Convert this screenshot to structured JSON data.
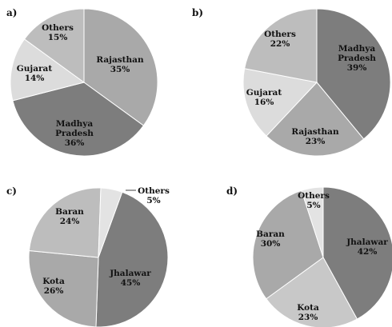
{
  "chart_data": [
    {
      "type": "pie",
      "panel": "a)",
      "slices": [
        {
          "label": [
            "Rajasthan"
          ],
          "value": 35,
          "value_text": "35%",
          "color": "#a9a9a9"
        },
        {
          "label": [
            "Madhya",
            "Pradesh"
          ],
          "value": 36,
          "value_text": "36%",
          "color": "#7d7d7d"
        },
        {
          "label": [
            "Gujarat"
          ],
          "value": 14,
          "value_text": "14%",
          "color": "#dcdcdc"
        },
        {
          "label": [
            "Others"
          ],
          "value": 15,
          "value_text": "15%",
          "color": "#bdbdbd"
        }
      ]
    },
    {
      "type": "pie",
      "panel": "b)",
      "slices": [
        {
          "label": [
            "Madhya",
            "Pradesh"
          ],
          "value": 39,
          "value_text": "39%",
          "color": "#7d7d7d"
        },
        {
          "label": [
            "Rajasthan"
          ],
          "value": 23,
          "value_text": "23%",
          "color": "#a9a9a9"
        },
        {
          "label": [
            "Gujarat"
          ],
          "value": 16,
          "value_text": "16%",
          "color": "#dcdcdc"
        },
        {
          "label": [
            "Others"
          ],
          "value": 22,
          "value_text": "22%",
          "color": "#bdbdbd"
        }
      ]
    },
    {
      "type": "pie",
      "panel": "c)",
      "slices": [
        {
          "label": [
            "Jhalawar"
          ],
          "value": 45,
          "value_text": "45%",
          "color": "#7d7d7d"
        },
        {
          "label": [
            "Kota"
          ],
          "value": 26,
          "value_text": "26%",
          "color": "#a9a9a9"
        },
        {
          "label": [
            "Baran"
          ],
          "value": 24,
          "value_text": "24%",
          "color": "#bdbdbd"
        },
        {
          "label": [
            "Others"
          ],
          "value": 5,
          "value_text": "5%",
          "color": "#e3e3e3"
        }
      ]
    },
    {
      "type": "pie",
      "panel": "d)",
      "slices": [
        {
          "label": [
            "Jhalawar"
          ],
          "value": 42,
          "value_text": "42%",
          "color": "#7d7d7d"
        },
        {
          "label": [
            "Kota"
          ],
          "value": 23,
          "value_text": "23%",
          "color": "#c8c8c8"
        },
        {
          "label": [
            "Baran"
          ],
          "value": 30,
          "value_text": "30%",
          "color": "#a9a9a9"
        },
        {
          "label": [
            "Others"
          ],
          "value": 5,
          "value_text": "5%",
          "color": "#e3e3e3"
        }
      ]
    }
  ]
}
